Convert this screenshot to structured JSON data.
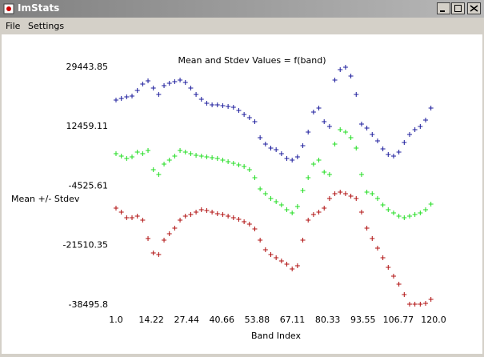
{
  "window": {
    "title": "ImStats"
  },
  "menu": [
    "File",
    "Settings"
  ],
  "chart_data": {
    "type": "scatter",
    "title": "Mean and Stdev Values = f(band)",
    "x_label": "Band Index",
    "y_label": "Mean +/- Stdev",
    "marker": "+",
    "grid": false,
    "x": [
      1,
      3,
      5,
      7,
      9,
      11,
      13,
      15,
      17,
      19,
      21,
      23,
      25,
      27,
      29,
      31,
      33,
      35,
      37,
      39,
      41,
      43,
      45,
      47,
      49,
      51,
      53,
      55,
      57,
      59,
      61,
      63,
      65,
      67,
      69,
      71,
      73,
      75,
      77,
      79,
      81,
      83,
      85,
      87,
      89,
      91,
      93,
      95,
      97,
      99,
      101,
      103,
      105,
      107,
      109,
      111,
      113,
      115,
      117,
      119
    ],
    "xlim": [
      1,
      120
    ],
    "xticks": [
      {
        "value": 1,
        "label": "1.0"
      },
      14.22,
      27.44,
      40.66,
      53.88,
      67.11,
      80.33,
      93.55,
      106.77,
      {
        "value": 120,
        "label": "120.0"
      }
    ],
    "ylim": [
      -38495.8,
      29443.85
    ],
    "yticks": [
      29443.85,
      12459.11,
      -4525.61,
      -21510.35,
      -38495.8
    ],
    "series": [
      {
        "color": "#1c1c9c",
        "values": [
          20065,
          20523,
          20980,
          21209,
          22810,
          24640,
          25555,
          23496,
          21666,
          24183,
          24869,
          25326,
          25784,
          25098,
          23496,
          21666,
          20294,
          19150,
          18693,
          18693,
          18464,
          18235,
          18006,
          17091,
          15948,
          15033,
          13889,
          9314,
          7484,
          6340,
          5883,
          4739,
          3366,
          2909,
          3824,
          7026,
          10915,
          16634,
          17778,
          13889,
          12516,
          25784,
          28758,
          29444,
          26928,
          21666,
          13203,
          12059,
          10229,
          8399,
          6111,
          4510,
          4053,
          5196,
          7941,
          10229,
          11601,
          12516,
          14346,
          17778
        ]
      },
      {
        "color": "#22dd22",
        "values": [
          4739,
          4053,
          3366,
          3824,
          5196,
          4739,
          5654,
          164,
          -1209,
          1765,
          2909,
          4053,
          5654,
          5196,
          4739,
          4281,
          4053,
          3824,
          3595,
          3366,
          2909,
          2451,
          1994,
          1536,
          1079,
          164,
          -2124,
          -5326,
          -6699,
          -8071,
          -8986,
          -9901,
          -11274,
          -12189,
          -10359,
          -5784,
          -2124,
          1765,
          2909,
          -522,
          -1209,
          7484,
          11601,
          10915,
          9314,
          6340,
          -1209,
          -6241,
          -6699,
          -8071,
          -9901,
          -11274,
          -12189,
          -13104,
          -13561,
          -13104,
          -12646,
          -12189,
          -11274,
          -9672
        ]
      },
      {
        "color": "#b01010",
        "values": [
          -10816,
          -11960,
          -13561,
          -13561,
          -13104,
          -14247,
          -19509,
          -23626,
          -24084,
          -19966,
          -18136,
          -16535,
          -14247,
          -13104,
          -12646,
          -11960,
          -11274,
          -11502,
          -11960,
          -12417,
          -12646,
          -13104,
          -13561,
          -14019,
          -14705,
          -15391,
          -16764,
          -19966,
          -22711,
          -24084,
          -24999,
          -25914,
          -26829,
          -28201,
          -27286,
          -19966,
          -14247,
          -12646,
          -11960,
          -10816,
          -8071,
          -6699,
          -6241,
          -6699,
          -7385,
          -8071,
          -11960,
          -16535,
          -19509,
          -22254,
          -24999,
          -27744,
          -30260,
          -32547,
          -35521,
          -38266,
          -38266,
          -38266,
          -38037,
          -36894
        ]
      }
    ]
  }
}
